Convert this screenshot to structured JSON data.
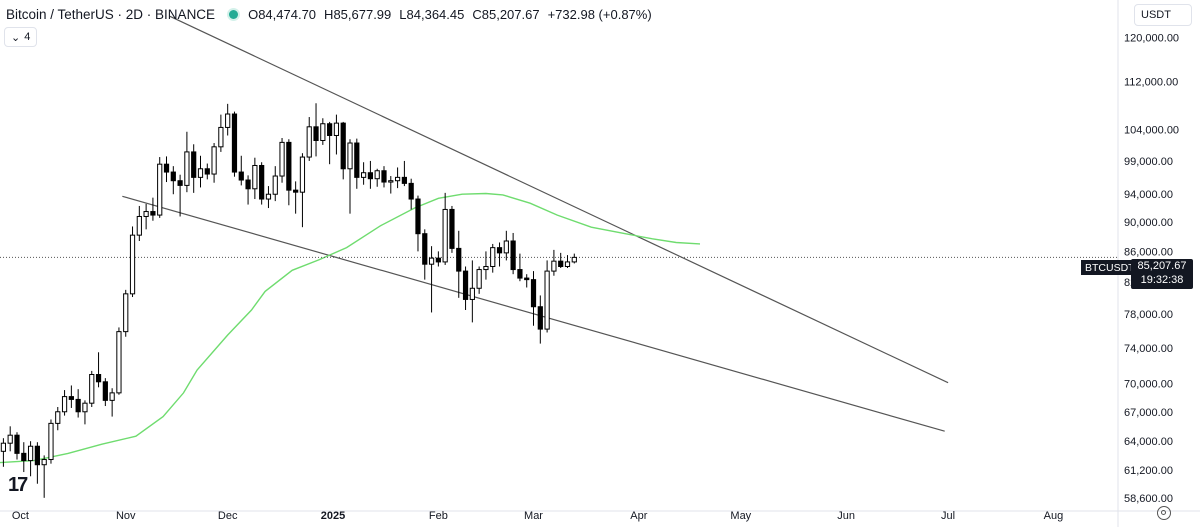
{
  "header": {
    "symbol": "Bitcoin / TetherUS · 2D · BINANCE",
    "open": "84,474.70",
    "high": "85,677.99",
    "low": "84,364.45",
    "close": "85,207.67",
    "change": "+732.98 (+0.87%)",
    "labels": {
      "o": "O",
      "h": "H",
      "l": "L",
      "c": "C"
    }
  },
  "indicator_toggle": {
    "label": "4"
  },
  "currency": {
    "label": "USDT"
  },
  "price_tag": {
    "symbol": "BTCUSDT",
    "price": "85,207.67",
    "countdown": "19:32:38"
  },
  "colors": {
    "up": "#ffffff",
    "down": "#000000",
    "wick": "#000000",
    "ma": "#6fdc6f",
    "trend": "#555555"
  },
  "chart_data": {
    "type": "candlestick",
    "interval": "2D",
    "y_scale": "log",
    "ylim": [
      57500,
      126000
    ],
    "y_ticks": [
      120000,
      112000,
      104000,
      99000,
      94000,
      90000,
      86000,
      82000,
      78000,
      74000,
      70000,
      67000,
      64000,
      61200,
      58600
    ],
    "y_tick_labels": [
      "120,000.00",
      "112,000.00",
      "104,000.00",
      "99,000.00",
      "94,000.00",
      "90,000.00",
      "86,000.00",
      "82,000.00",
      "78,000.00",
      "74,000.00",
      "70,000.00",
      "67,000.00",
      "64,000.00",
      "61,200.00",
      "58,600.00"
    ],
    "x_start": "2024-09-25",
    "x_end": "2025-08-20",
    "x_ticks": [
      {
        "date": "2024-10-01",
        "label": "Oct"
      },
      {
        "date": "2024-11-01",
        "label": "Nov"
      },
      {
        "date": "2024-12-01",
        "label": "Dec"
      },
      {
        "date": "2025-01-01",
        "label": "2025"
      },
      {
        "date": "2025-02-01",
        "label": "Feb"
      },
      {
        "date": "2025-03-01",
        "label": "Mar"
      },
      {
        "date": "2025-04-01",
        "label": "Apr"
      },
      {
        "date": "2025-05-01",
        "label": "May"
      },
      {
        "date": "2025-06-01",
        "label": "Jun"
      },
      {
        "date": "2025-07-01",
        "label": "Jul"
      },
      {
        "date": "2025-08-01",
        "label": "Aug"
      }
    ],
    "first_candle_date": "2024-09-25",
    "candles": [
      [
        63000,
        64300,
        61500,
        63800
      ],
      [
        63800,
        65500,
        63000,
        64600
      ],
      [
        64600,
        64900,
        62200,
        62800
      ],
      [
        62800,
        63900,
        61000,
        62100
      ],
      [
        62100,
        64000,
        60600,
        63500
      ],
      [
        63500,
        63900,
        59900,
        61700
      ],
      [
        61700,
        62600,
        58600,
        62200
      ],
      [
        62200,
        66200,
        61800,
        65800
      ],
      [
        65800,
        67500,
        65100,
        67000
      ],
      [
        67000,
        69300,
        66600,
        68600
      ],
      [
        68600,
        69800,
        67400,
        68300
      ],
      [
        68300,
        69400,
        66400,
        67000
      ],
      [
        67000,
        68200,
        65700,
        67900
      ],
      [
        67900,
        71400,
        67500,
        71000
      ],
      [
        71000,
        73500,
        69600,
        70200
      ],
      [
        70200,
        70600,
        67600,
        68200
      ],
      [
        68200,
        69500,
        66500,
        69000
      ],
      [
        69000,
        76400,
        68800,
        75900
      ],
      [
        75900,
        81000,
        75300,
        80500
      ],
      [
        80500,
        89400,
        80100,
        88200
      ],
      [
        88200,
        92300,
        87400,
        90800
      ],
      [
        90800,
        92600,
        89000,
        91500
      ],
      [
        91500,
        93500,
        90200,
        91000
      ],
      [
        91000,
        99600,
        90600,
        98500
      ],
      [
        98500,
        99700,
        95800,
        97300
      ],
      [
        97300,
        98200,
        94000,
        96000
      ],
      [
        96000,
        96900,
        90800,
        95300
      ],
      [
        95300,
        103600,
        94300,
        100400
      ],
      [
        100400,
        101600,
        94200,
        96500
      ],
      [
        96500,
        99800,
        95000,
        97800
      ],
      [
        97800,
        98600,
        96200,
        97000
      ],
      [
        97000,
        101800,
        95700,
        101200
      ],
      [
        101200,
        106400,
        100400,
        104300
      ],
      [
        104300,
        108200,
        103000,
        106500
      ],
      [
        106500,
        106900,
        96600,
        97300
      ],
      [
        97300,
        99800,
        95300,
        96100
      ],
      [
        96100,
        96800,
        92500,
        94800
      ],
      [
        94800,
        99500,
        93300,
        98300
      ],
      [
        98300,
        98800,
        92500,
        93300
      ],
      [
        93300,
        95200,
        92000,
        94000
      ],
      [
        94000,
        98200,
        93000,
        96700
      ],
      [
        96700,
        102600,
        95700,
        101900
      ],
      [
        101900,
        102400,
        92400,
        94600
      ],
      [
        94600,
        95900,
        91200,
        94300
      ],
      [
        94300,
        100200,
        89300,
        99600
      ],
      [
        99600,
        106000,
        99000,
        104400
      ],
      [
        104400,
        108300,
        99700,
        102200
      ],
      [
        102200,
        105800,
        101500,
        104900
      ],
      [
        104900,
        105200,
        98500,
        103000
      ],
      [
        103000,
        106400,
        100000,
        105000
      ],
      [
        105000,
        105200,
        96200,
        97800
      ],
      [
        97800,
        102400,
        91200,
        101800
      ],
      [
        101800,
        102500,
        94800,
        96500
      ],
      [
        96500,
        98800,
        95400,
        97200
      ],
      [
        97200,
        99000,
        94800,
        96300
      ],
      [
        96300,
        97800,
        95100,
        97500
      ],
      [
        97500,
        98200,
        95000,
        95800
      ],
      [
        95800,
        96700,
        94100,
        96000
      ],
      [
        96000,
        98000,
        94900,
        96500
      ],
      [
        96500,
        99000,
        95200,
        95600
      ],
      [
        95600,
        96300,
        91800,
        93300
      ],
      [
        93300,
        93800,
        86000,
        88400
      ],
      [
        88400,
        89000,
        82300,
        84300
      ],
      [
        84300,
        86700,
        78200,
        85100
      ],
      [
        85100,
        86000,
        84000,
        84600
      ],
      [
        84600,
        94200,
        84200,
        91800
      ],
      [
        91800,
        92300,
        85800,
        86400
      ],
      [
        86400,
        88800,
        80000,
        83400
      ],
      [
        83400,
        84000,
        78500,
        79800
      ],
      [
        79800,
        84800,
        77000,
        81200
      ],
      [
        81200,
        84000,
        80500,
        83600
      ],
      [
        83600,
        86000,
        82300,
        84000
      ],
      [
        84000,
        87000,
        83200,
        86500
      ],
      [
        86500,
        87200,
        84000,
        85800
      ],
      [
        85800,
        88800,
        84800,
        87400
      ],
      [
        87400,
        88500,
        83000,
        83600
      ],
      [
        83600,
        85700,
        82100,
        82500
      ],
      [
        82500,
        83000,
        81300,
        82300
      ],
      [
        82300,
        83400,
        76600,
        78900
      ],
      [
        78900,
        80300,
        74500,
        76200
      ],
      [
        76200,
        84800,
        75800,
        83400
      ],
      [
        83400,
        86200,
        82800,
        84700
      ],
      [
        84700,
        85800,
        83800,
        84000
      ],
      [
        84000,
        85500,
        83800,
        84600
      ],
      [
        84600,
        85700,
        84400,
        85200
      ]
    ],
    "moving_average": [
      [
        "2024-09-25",
        61900
      ],
      [
        "2024-10-05",
        62100
      ],
      [
        "2024-10-15",
        62800
      ],
      [
        "2024-10-25",
        63700
      ],
      [
        "2024-11-04",
        64500
      ],
      [
        "2024-11-12",
        66500
      ],
      [
        "2024-11-18",
        69000
      ],
      [
        "2024-11-22",
        71500
      ],
      [
        "2024-12-01",
        75500
      ],
      [
        "2024-12-08",
        78500
      ],
      [
        "2024-12-12",
        80800
      ],
      [
        "2024-12-20",
        83500
      ],
      [
        "2024-12-28",
        84900
      ],
      [
        "2025-01-05",
        86500
      ],
      [
        "2025-01-15",
        89500
      ],
      [
        "2025-01-25",
        92000
      ],
      [
        "2025-02-01",
        93400
      ],
      [
        "2025-02-08",
        94000
      ],
      [
        "2025-02-15",
        94100
      ],
      [
        "2025-02-20",
        93900
      ],
      [
        "2025-02-28",
        92700
      ],
      [
        "2025-03-08",
        91000
      ],
      [
        "2025-03-18",
        89300
      ],
      [
        "2025-03-28",
        88400
      ],
      [
        "2025-04-05",
        87700
      ],
      [
        "2025-04-12",
        87200
      ],
      [
        "2025-04-19",
        87000
      ]
    ],
    "trendlines": [
      {
        "name": "upper",
        "from": [
          "2024-11-14",
          124000
        ],
        "to": [
          "2025-07-01",
          70100
        ]
      },
      {
        "name": "lower",
        "from": [
          "2024-10-31",
          93700
        ],
        "to": [
          "2025-06-30",
          65000
        ]
      }
    ],
    "last_price": 85207.67
  }
}
